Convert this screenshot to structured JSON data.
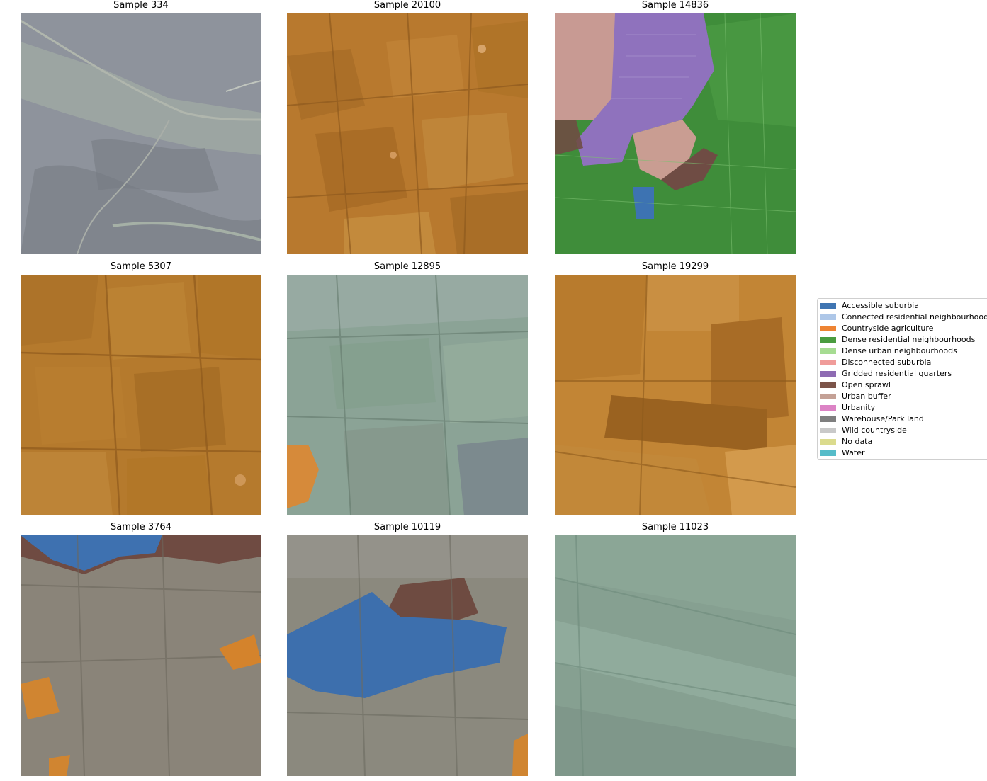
{
  "panels": [
    {
      "title": "Sample 334",
      "base": "#8f949e",
      "overlay": "#c7c7c7"
    },
    {
      "title": "Sample 20100",
      "base": "#b8782d",
      "overlay": "#ff7f0e"
    },
    {
      "title": "Sample 14836",
      "base": "#4b8f45",
      "overlay": "#2ca02c"
    },
    {
      "title": "Sample 5307",
      "base": "#b57a2c",
      "overlay": "#ff7f0e"
    },
    {
      "title": "Sample 12895",
      "base": "#8ea59a",
      "overlay": "#c7c7c7"
    },
    {
      "title": "Sample 19299",
      "base": "#c38535",
      "overlay": "#ff7f0e"
    },
    {
      "title": "Sample 3764",
      "base": "#8a8478",
      "overlay": "#c7c7c7"
    },
    {
      "title": "Sample 10119",
      "base": "#8c8a7f",
      "overlay": "#c7c7c7"
    },
    {
      "title": "Sample 11023",
      "base": "#86a092",
      "overlay": "#c7c7c7"
    }
  ],
  "legend": {
    "items": [
      {
        "label": "Accessible suburbia",
        "color": "#3f75b2"
      },
      {
        "label": "Connected residential neighbourhoods",
        "color": "#aec7e8"
      },
      {
        "label": "Countryside agriculture",
        "color": "#ee8433"
      },
      {
        "label": "Dense residential neighbourhoods",
        "color": "#4a9c3f"
      },
      {
        "label": "Dense urban neighbourhoods",
        "color": "#a6dc92"
      },
      {
        "label": "Disconnected suburbia",
        "color": "#f09c9a"
      },
      {
        "label": "Gridded residential quarters",
        "color": "#8e6bb3"
      },
      {
        "label": "Open sprawl",
        "color": "#7c5449"
      },
      {
        "label": "Urban buffer",
        "color": "#c4a196"
      },
      {
        "label": "Urbanity",
        "color": "#dc83c5"
      },
      {
        "label": "Warehouse/Park land",
        "color": "#7f7f7f"
      },
      {
        "label": "Wild countryside",
        "color": "#c9c9c9"
      },
      {
        "label": "No data",
        "color": "#dbdb8d"
      },
      {
        "label": "Water",
        "color": "#56bcc9"
      }
    ]
  }
}
